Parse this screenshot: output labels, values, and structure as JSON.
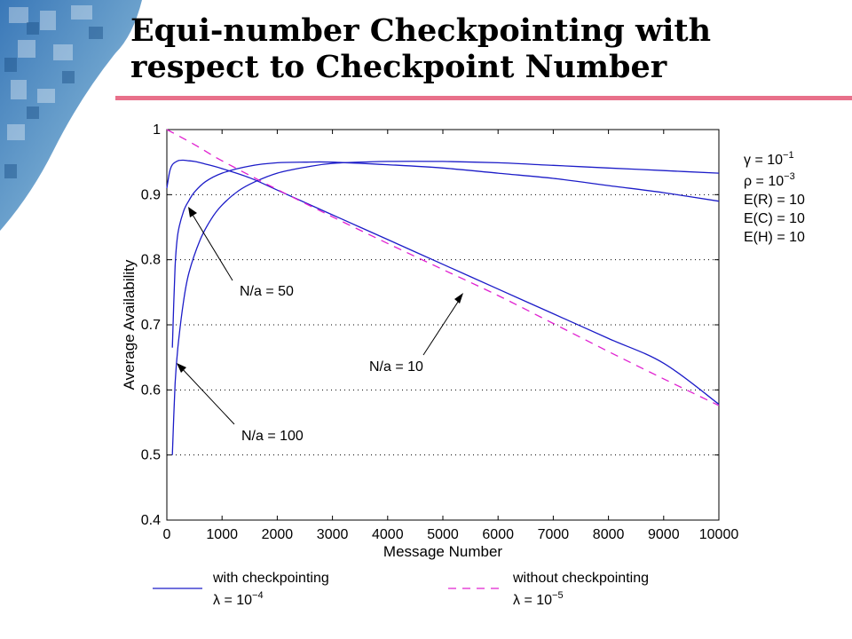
{
  "slide": {
    "title_line1": "Equi-number Checkpointing with",
    "title_line2": "respect to Checkpoint Number",
    "accent_color": "#e8708a"
  },
  "chart_data": {
    "type": "line",
    "xlabel": "Message Number",
    "ylabel": "Average Availability",
    "xlim": [
      0,
      10000
    ],
    "ylim": [
      0.4,
      1.0
    ],
    "xticks": [
      "0",
      "1000",
      "2000",
      "3000",
      "4000",
      "5000",
      "6000",
      "7000",
      "8000",
      "9000",
      "10000"
    ],
    "yticks": [
      "0.4",
      "0.5",
      "0.6",
      "0.7",
      "0.8",
      "0.9",
      "1"
    ],
    "grid": "dotted horizontal",
    "params": {
      "gamma": "10",
      "gamma_exp": "−1",
      "rho": "10",
      "rho_exp": "−3",
      "er": "E(R) = 10",
      "ec": "E(C) = 10",
      "eh": "E(H) = 10"
    },
    "annotations": {
      "n50": "N/a = 50",
      "n10": "N/a = 10",
      "n100": "N/a = 100"
    },
    "legend": {
      "with_label": "with checkpointing",
      "with_lambda_exp": "−4",
      "without_label": "without checkpointing",
      "without_lambda_exp": "−5"
    },
    "series": [
      {
        "name": "N/a = 10",
        "color": "#1c1cc8",
        "style": "solid",
        "x": [
          0,
          50,
          100,
          200,
          300,
          400,
          500,
          700,
          1000,
          1500,
          2000,
          3000,
          4000,
          5000,
          6000,
          7000,
          8000,
          9000,
          10000
        ],
        "y": [
          0.91,
          0.935,
          0.946,
          0.952,
          0.953,
          0.952,
          0.951,
          0.947,
          0.94,
          0.926,
          0.907,
          0.869,
          0.831,
          0.793,
          0.755,
          0.717,
          0.679,
          0.641,
          0.578
        ]
      },
      {
        "name": "N/a = 50",
        "color": "#1c1cc8",
        "style": "solid",
        "x": [
          100,
          150,
          200,
          300,
          400,
          500,
          700,
          1000,
          1500,
          2000,
          2500,
          3000,
          4000,
          5000,
          6000,
          7000,
          8000,
          9000,
          10000
        ],
        "y": [
          0.665,
          0.79,
          0.84,
          0.874,
          0.891,
          0.904,
          0.92,
          0.933,
          0.944,
          0.949,
          0.95,
          0.95,
          0.946,
          0.941,
          0.933,
          0.925,
          0.914,
          0.903,
          0.89
        ]
      },
      {
        "name": "N/a = 100",
        "color": "#1c1cc8",
        "style": "solid",
        "x": [
          100,
          150,
          200,
          300,
          400,
          600,
          800,
          1000,
          1300,
          1600,
          2000,
          2500,
          3000,
          4000,
          5000,
          6000,
          7000,
          8000,
          9000,
          10000
        ],
        "y": [
          0.5,
          0.61,
          0.665,
          0.735,
          0.78,
          0.83,
          0.862,
          0.884,
          0.906,
          0.92,
          0.933,
          0.942,
          0.948,
          0.951,
          0.951,
          0.949,
          0.945,
          0.941,
          0.937,
          0.933
        ]
      },
      {
        "name": "without checkpointing",
        "color": "#e020d0",
        "style": "dashed",
        "x": [
          0,
          500,
          1000,
          2000,
          3000,
          4000,
          5000,
          6000,
          7000,
          8000,
          9000,
          10000
        ],
        "y": [
          1.0,
          0.977,
          0.952,
          0.908,
          0.866,
          0.825,
          0.785,
          0.745,
          0.702,
          0.659,
          0.617,
          0.576
        ]
      }
    ]
  }
}
